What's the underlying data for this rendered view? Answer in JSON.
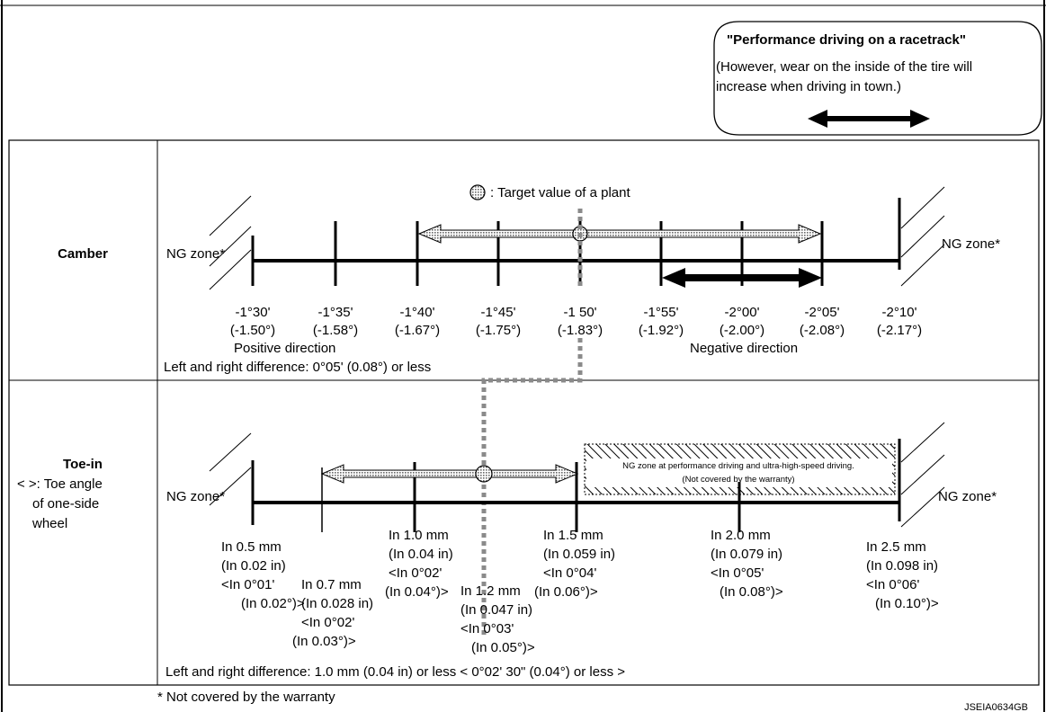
{
  "performance_box": {
    "title": "\"Performance driving on a racetrack\"",
    "note_line1": "(However, wear on the inside of the tire will",
    "note_line2": "increase when driving in town.)"
  },
  "camber": {
    "row_label": "Camber",
    "ng_left": "NG zone*",
    "ng_right": "NG zone*",
    "target_legend": ": Target value of a plant",
    "ticks": [
      {
        "deg": "-1°30'",
        "dec": "(-1.50°)"
      },
      {
        "deg": "-1°35'",
        "dec": "(-1.58°)"
      },
      {
        "deg": "-1°40'",
        "dec": "(-1.67°)"
      },
      {
        "deg": "-1°45'",
        "dec": "(-1.75°)"
      },
      {
        "deg": "-1 50'",
        "dec": "(-1.83°)"
      },
      {
        "deg": "-1°55'",
        "dec": "(-1.92°)"
      },
      {
        "deg": "-2°00'",
        "dec": "(-2.00°)"
      },
      {
        "deg": "-2°05'",
        "dec": "(-2.08°)"
      },
      {
        "deg": "-2°10'",
        "dec": "(-2.17°)"
      }
    ],
    "positive_direction": "Positive direction",
    "negative_direction": "Negative direction",
    "difference": "Left and right difference: 0°05' (0.08°) or less"
  },
  "toe_in": {
    "row_label": "Toe-in",
    "legend_line1": "< >: Toe angle",
    "legend_line2": "of one-side",
    "legend_line3": "wheel",
    "ng_left": "NG zone*",
    "ng_right": "NG zone*",
    "ng_perf_line1": "NG zone at performance driving and ultra-high-speed driving.",
    "ng_perf_line2": "(Not covered by the warranty)",
    "ticks": [
      {
        "mm": "In 0.5 mm",
        "in": "(In 0.02 in)",
        "ang": "<In 0°01'",
        "dec": "(In 0.02°)>"
      },
      {
        "mm": "In 0.7 mm",
        "in": "(In 0.028 in)",
        "ang": "<In 0°02'",
        "dec": "(In 0.03°)>"
      },
      {
        "mm": "In 1.0 mm",
        "in": "(In 0.04 in)",
        "ang": "<In 0°02'",
        "dec": "(In 0.04°)>"
      },
      {
        "mm": "In 1.2 mm",
        "in": "(In 0.047 in)",
        "ang": "<In 0°03'",
        "dec": "(In 0.05°)>"
      },
      {
        "mm": "In 1.5 mm",
        "in": "(In 0.059 in)",
        "ang": "<In 0°04'",
        "dec": "(In 0.06°)>"
      },
      {
        "mm": "In 2.0 mm",
        "in": "(In 0.079 in)",
        "ang": "<In 0°05'",
        "dec": "(In 0.08°)>"
      },
      {
        "mm": "In 2.5 mm",
        "in": "(In 0.098 in)",
        "ang": "<In 0°06'",
        "dec": "(In 0.10°)>"
      }
    ],
    "difference": "Left and right difference: 1.0 mm (0.04 in) or less < 0°02' 30\"  (0.04°) or less >"
  },
  "footnote": "* Not covered by the warranty",
  "figure_id": "JSEIA0634GB"
}
